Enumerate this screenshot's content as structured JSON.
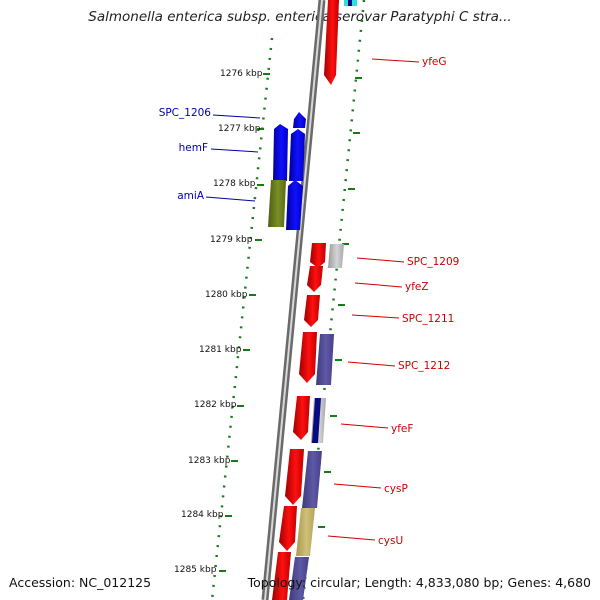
{
  "title": "Salmonella enterica subsp. enterica serovar Paratyphi C stra...",
  "accession": "Accession: NC_012125",
  "topology": "Topology: circular; Length: 4,833,080 bp; Genes: 4,680",
  "colors": {
    "forward": "#ff0000",
    "reverse": "#0000ff",
    "olive": "#6b7f1e",
    "slate": "#56509a",
    "khaki": "#c8b86c",
    "grey": "#bcbcbc",
    "cyan": "#33dddd",
    "navy": "#0a0a80",
    "tick": "#1a7a1a",
    "label_forward": "#cc0000",
    "label_reverse": "#0000aa"
  },
  "ticks": [
    "1276 kbp",
    "1277 kbp",
    "1278 kbp",
    "1279 kbp",
    "1280 kbp",
    "1281 kbp",
    "1282 kbp",
    "1283 kbp",
    "1284 kbp",
    "1285 kbp"
  ],
  "left_labels": [
    "SPC_1206",
    "hemF",
    "amiA"
  ],
  "right_labels": [
    "yfeG",
    "SPC_1209",
    "yfeZ",
    "SPC_1211",
    "SPC_1212",
    "yfeF",
    "cysP",
    "cysU"
  ]
}
